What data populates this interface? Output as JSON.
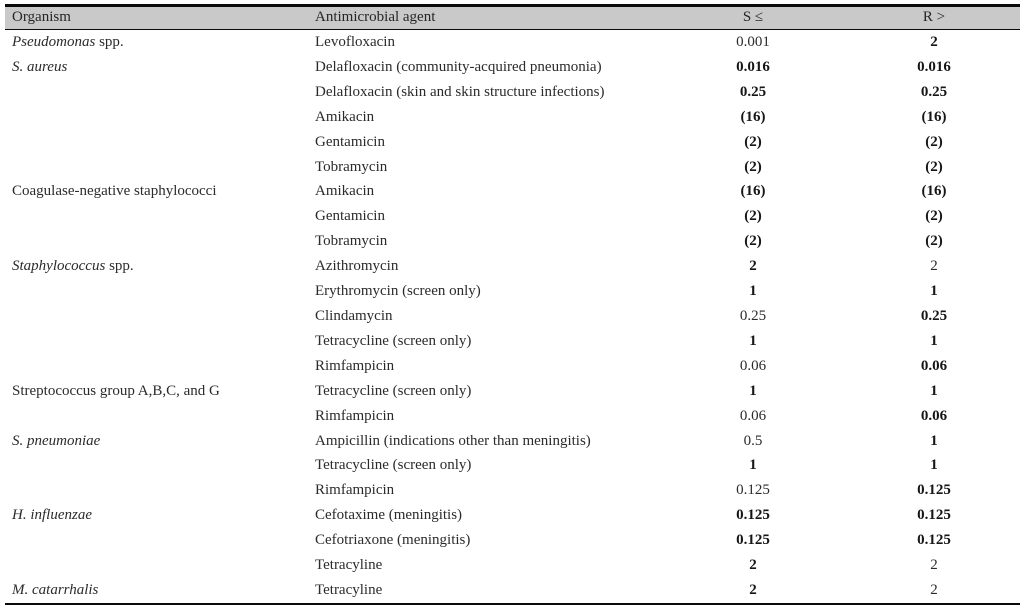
{
  "table": {
    "columns": {
      "organism": "Organism",
      "agent": "Antimicrobial agent",
      "s": "S ≤",
      "r": "R >"
    },
    "rows": [
      {
        "org_i": "Pseudomonas",
        "org_r": " spp.",
        "agent": "Levofloxacin",
        "s": "0.001",
        "s_b": false,
        "r": "2",
        "r_b": true
      },
      {
        "org_i": "S. aureus",
        "org_r": "",
        "agent": "Delafloxacin (community-acquired pneumonia)",
        "s": "0.016",
        "s_b": true,
        "r": "0.016",
        "r_b": true
      },
      {
        "org_i": "",
        "org_r": "",
        "agent": "Delafloxacin (skin and skin structure infections)",
        "s": "0.25",
        "s_b": true,
        "r": "0.25",
        "r_b": true
      },
      {
        "org_i": "",
        "org_r": "",
        "agent": "Amikacin",
        "s": "(16)",
        "s_b": true,
        "r": "(16)",
        "r_b": true
      },
      {
        "org_i": "",
        "org_r": "",
        "agent": "Gentamicin",
        "s": "(2)",
        "s_b": true,
        "r": "(2)",
        "r_b": true
      },
      {
        "org_i": "",
        "org_r": "",
        "agent": "Tobramycin",
        "s": "(2)",
        "s_b": true,
        "r": "(2)",
        "r_b": true
      },
      {
        "org_i": "",
        "org_r": "Coagulase-negative staphylococci",
        "agent": "Amikacin",
        "s": "(16)",
        "s_b": true,
        "r": "(16)",
        "r_b": true
      },
      {
        "org_i": "",
        "org_r": "",
        "agent": "Gentamicin",
        "s": "(2)",
        "s_b": true,
        "r": "(2)",
        "r_b": true
      },
      {
        "org_i": "",
        "org_r": "",
        "agent": "Tobramycin",
        "s": "(2)",
        "s_b": true,
        "r": "(2)",
        "r_b": true
      },
      {
        "org_i": "Staphylococcus",
        "org_r": " spp.",
        "agent": "Azithromycin",
        "s": "2",
        "s_b": true,
        "r": "2",
        "r_b": false
      },
      {
        "org_i": "",
        "org_r": "",
        "agent": "Erythromycin (screen only)",
        "s": "1",
        "s_b": true,
        "r": "1",
        "r_b": true
      },
      {
        "org_i": "",
        "org_r": "",
        "agent": "Clindamycin",
        "s": "0.25",
        "s_b": false,
        "r": "0.25",
        "r_b": true
      },
      {
        "org_i": "",
        "org_r": "",
        "agent": "Tetracycline (screen only)",
        "s": "1",
        "s_b": true,
        "r": "1",
        "r_b": true
      },
      {
        "org_i": "",
        "org_r": "",
        "agent": "Rimfampicin",
        "s": "0.06",
        "s_b": false,
        "r": "0.06",
        "r_b": true
      },
      {
        "org_i": "",
        "org_r": "Streptococcus group A,B,C, and G",
        "agent": "Tetracycline (screen only)",
        "s": "1",
        "s_b": true,
        "r": "1",
        "r_b": true
      },
      {
        "org_i": "",
        "org_r": "",
        "agent": "Rimfampicin",
        "s": "0.06",
        "s_b": false,
        "r": "0.06",
        "r_b": true
      },
      {
        "org_i": "S. pneumoniae",
        "org_r": "",
        "agent": "Ampicillin (indications other than meningitis)",
        "s": "0.5",
        "s_b": false,
        "r": "1",
        "r_b": true
      },
      {
        "org_i": "",
        "org_r": "",
        "agent": "Tetracycline (screen only)",
        "s": "1",
        "s_b": true,
        "r": "1",
        "r_b": true
      },
      {
        "org_i": "",
        "org_r": "",
        "agent": "Rimfampicin",
        "s": "0.125",
        "s_b": false,
        "r": "0.125",
        "r_b": true
      },
      {
        "org_i": "H. influenzae",
        "org_r": "",
        "agent": "Cefotaxime (meningitis)",
        "s": "0.125",
        "s_b": true,
        "r": "0.125",
        "r_b": true
      },
      {
        "org_i": "",
        "org_r": "",
        "agent": "Cefotriaxone (meningitis)",
        "s": "0.125",
        "s_b": true,
        "r": "0.125",
        "r_b": true
      },
      {
        "org_i": "",
        "org_r": "",
        "agent": "Tetracyline",
        "s": "2",
        "s_b": true,
        "r": "2",
        "r_b": false
      },
      {
        "org_i": "M. catarrhalis",
        "org_r": "",
        "agent": "Tetracyline",
        "s": "2",
        "s_b": true,
        "r": "2",
        "r_b": false
      }
    ]
  },
  "colors": {
    "header_bg": "#c9c9c9",
    "rule": "#0a0a0a",
    "text": "#2b2b2b"
  }
}
